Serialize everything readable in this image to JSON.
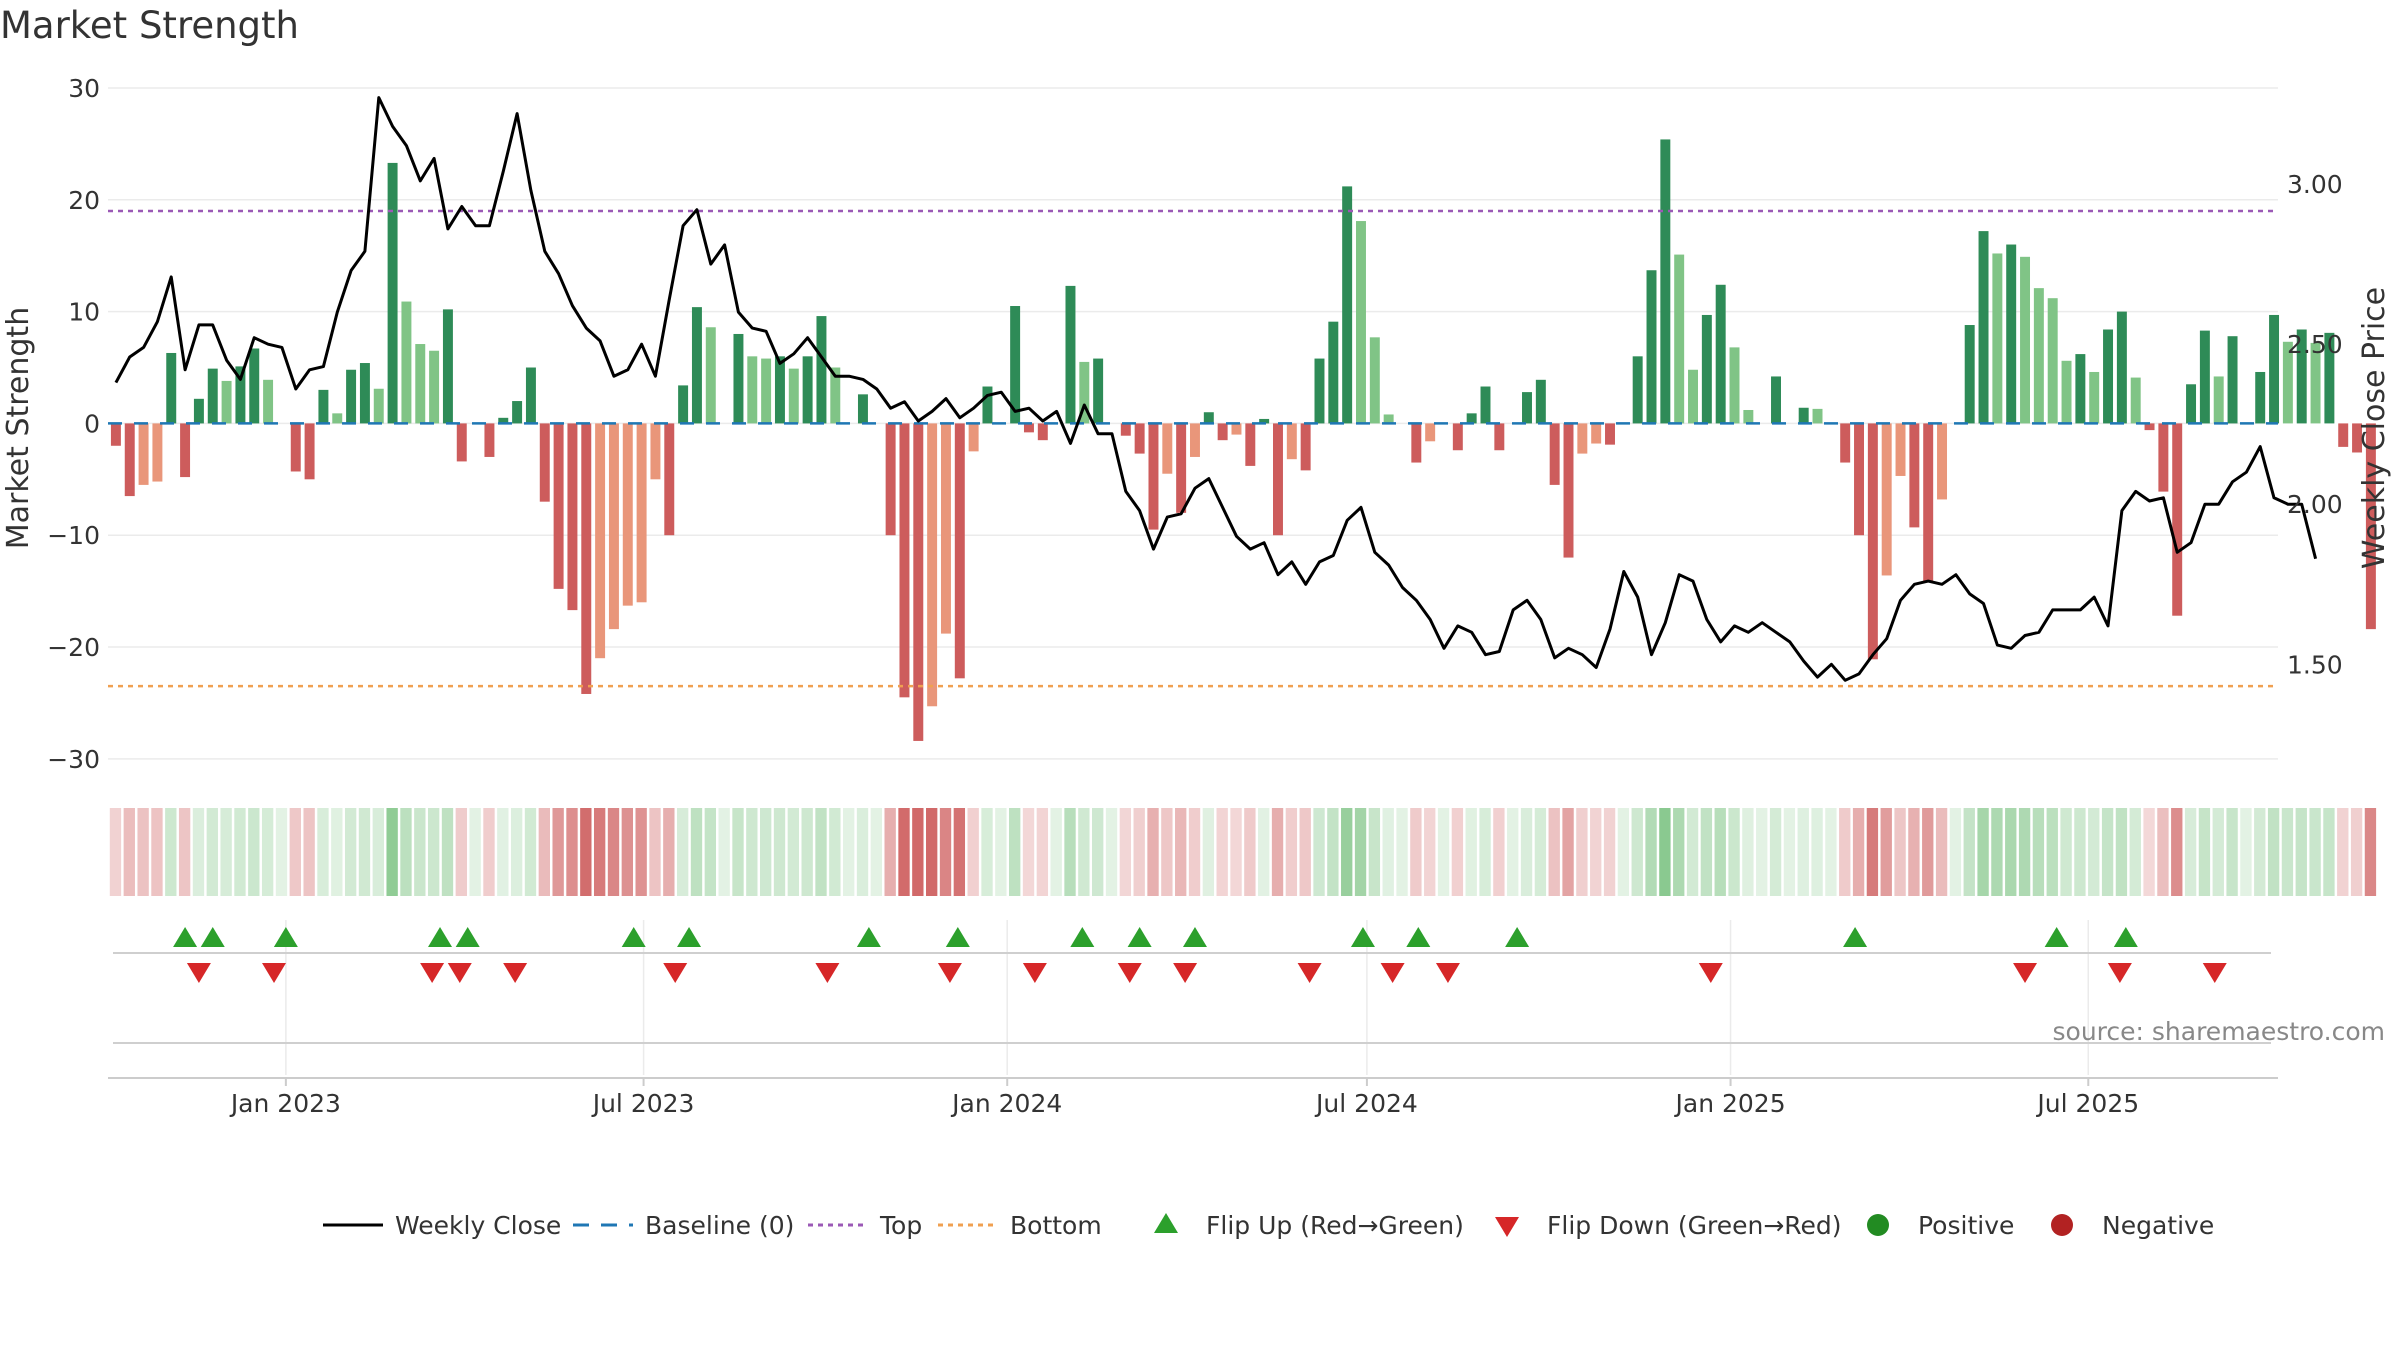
{
  "chart_data": {
    "type": "bar",
    "title": "Market Strength",
    "ylabel": "Market Strength",
    "y2label": "Weekly Close Price",
    "source": "source: sharemaestro.com",
    "ylim": [
      -31,
      30
    ],
    "y2lim": [
      1.17,
      3.3
    ],
    "yticks": [
      30,
      20,
      10,
      0,
      -10,
      -20,
      -30
    ],
    "ytick_labels": [
      "30",
      "20",
      "10",
      "0",
      "−10",
      "−20",
      "−30"
    ],
    "y2ticks": [
      3.0,
      2.5,
      2.0,
      1.5
    ],
    "y2tick_labels": [
      "3.00",
      "2.50",
      "2.00",
      "1.50"
    ],
    "x_start": "2022-10-03",
    "x_end": "2025-10-05",
    "xticks": [
      {
        "date": "2023-01-01",
        "label": "Jan 2023"
      },
      {
        "date": "2023-07-01",
        "label": "Jul 2023"
      },
      {
        "date": "2024-01-01",
        "label": "Jan 2024"
      },
      {
        "date": "2024-07-01",
        "label": "Jul 2024"
      },
      {
        "date": "2025-01-01",
        "label": "Jan 2025"
      },
      {
        "date": "2025-07-01",
        "label": "Jul 2025"
      }
    ],
    "week_start": "2022-10-07",
    "top_threshold": 19,
    "bottom_threshold": -23.5,
    "strength": [
      -2,
      -6.5,
      -5.5,
      -5.2,
      6.3,
      -4.8,
      2.2,
      4.9,
      3.8,
      5.1,
      6.7,
      3.9,
      0,
      -4.3,
      -5,
      3,
      0.9,
      4.8,
      5.4,
      3.1,
      23.3,
      10.9,
      7.1,
      6.5,
      10.2,
      -3.4,
      0,
      -3,
      0.5,
      2,
      5,
      -7,
      -14.8,
      -16.7,
      -24.2,
      -21,
      -18.4,
      -16.3,
      -16,
      -5,
      -10,
      3.4,
      10.4,
      8.6,
      0,
      8,
      6,
      5.8,
      6,
      4.9,
      6,
      9.6,
      5,
      0,
      2.6,
      0,
      -10,
      -24.5,
      -28.4,
      -25.3,
      -18.8,
      -22.8,
      -2.5,
      3.3,
      0,
      10.5,
      -0.8,
      -1.5,
      0,
      12.3,
      5.5,
      5.8,
      0,
      -1.1,
      -2.7,
      -9.5,
      -4.5,
      -8,
      -3,
      1,
      -1.5,
      -1,
      -3.8,
      0.4,
      -10,
      -3.2,
      -4.2,
      5.8,
      9.1,
      21.2,
      18.1,
      7.7,
      0.8,
      0,
      -3.5,
      -1.6,
      0,
      -2.4,
      0.9,
      3.3,
      -2.4,
      0,
      2.8,
      3.9,
      -5.5,
      -12,
      -2.7,
      -1.8,
      -1.9,
      0,
      6,
      13.7,
      25.4,
      15.1,
      4.8,
      9.7,
      12.4,
      6.8,
      1.2,
      0,
      4.2,
      0,
      1.4,
      1.3,
      0,
      -3.5,
      -10,
      -21.1,
      -13.6,
      -4.7,
      -9.3,
      -14.1,
      -6.8,
      0,
      8.8,
      17.2,
      15.2,
      16,
      14.9,
      12.1,
      11.2,
      5.6,
      6.2,
      4.6,
      8.4,
      10,
      4.1,
      -0.6,
      -6.1,
      -17.2,
      3.5,
      8.3,
      4.2,
      7.8,
      0,
      4.6,
      9.7,
      7.3,
      8.4,
      7.2,
      8.1,
      -2.1,
      -2.6,
      -18.4
    ],
    "close": [
      2.38,
      2.46,
      2.49,
      2.57,
      2.71,
      2.42,
      2.56,
      2.56,
      2.45,
      2.39,
      2.52,
      2.5,
      2.49,
      2.36,
      2.42,
      2.43,
      2.6,
      2.73,
      2.79,
      3.27,
      3.18,
      3.12,
      3.01,
      3.08,
      2.86,
      2.93,
      2.87,
      2.87,
      3.04,
      3.22,
      2.98,
      2.79,
      2.72,
      2.62,
      2.55,
      2.51,
      2.4,
      2.42,
      2.5,
      2.4,
      2.64,
      2.87,
      2.92,
      2.75,
      2.81,
      2.6,
      2.55,
      2.54,
      2.44,
      2.47,
      2.52,
      2.46,
      2.4,
      2.4,
      2.39,
      2.36,
      2.3,
      2.32,
      2.26,
      2.29,
      2.33,
      2.27,
      2.3,
      2.34,
      2.35,
      2.29,
      2.3,
      2.26,
      2.29,
      2.19,
      2.31,
      2.22,
      2.22,
      2.04,
      1.98,
      1.86,
      1.96,
      1.97,
      2.05,
      2.08,
      1.99,
      1.9,
      1.86,
      1.88,
      1.78,
      1.82,
      1.75,
      1.82,
      1.84,
      1.95,
      1.99,
      1.85,
      1.81,
      1.74,
      1.7,
      1.64,
      1.55,
      1.62,
      1.6,
      1.53,
      1.54,
      1.67,
      1.7,
      1.64,
      1.52,
      1.55,
      1.53,
      1.49,
      1.61,
      1.79,
      1.71,
      1.53,
      1.63,
      1.78,
      1.76,
      1.64,
      1.57,
      1.62,
      1.6,
      1.63,
      1.6,
      1.57,
      1.51,
      1.46,
      1.5,
      1.45,
      1.47,
      1.53,
      1.58,
      1.7,
      1.75,
      1.76,
      1.75,
      1.78,
      1.72,
      1.69,
      1.56,
      1.55,
      1.59,
      1.6,
      1.67,
      1.67,
      1.67,
      1.71,
      1.62,
      1.98,
      2.04,
      2.01,
      2.02,
      1.85,
      1.88,
      2.0,
      2.0,
      2.07,
      2.1,
      2.18,
      2.02,
      2.0,
      2.0,
      1.83
    ],
    "flip_up_dates": [
      "2022-11-11",
      "2022-11-25",
      "2023-01-01",
      "2023-03-20",
      "2023-04-03",
      "2023-06-26",
      "2023-07-24",
      "2023-10-23",
      "2023-12-07",
      "2024-02-08",
      "2024-03-08",
      "2024-04-05",
      "2024-06-29",
      "2024-07-27",
      "2024-09-15",
      "2025-03-05",
      "2025-06-15",
      "2025-07-20"
    ],
    "flip_down_dates": [
      "2022-11-18",
      "2022-12-26",
      "2023-03-16",
      "2023-03-30",
      "2023-04-27",
      "2023-07-17",
      "2023-10-02",
      "2023-12-03",
      "2024-01-15",
      "2024-03-03",
      "2024-03-31",
      "2024-06-02",
      "2024-07-14",
      "2024-08-11",
      "2024-12-22",
      "2025-05-30",
      "2025-07-17",
      "2025-09-03"
    ],
    "legend": [
      "Weekly Close",
      "Baseline (0)",
      "Top",
      "Bottom",
      "Flip Up (Red→Green)",
      "Flip Down (Green→Red)",
      "Positive",
      "Negative"
    ],
    "colors": {
      "pos_strong": "#2e8b57",
      "pos_light": "#80c486",
      "neg_strong": "#cd5c5c",
      "neg_light": "#e9967a",
      "line": "#000000",
      "baseline": "#1f77b4",
      "top": "#9b59b6",
      "bottom": "#f0a050",
      "flip_up": "#2ca02c",
      "flip_down": "#d62728",
      "positive": "#228b22",
      "negative": "#b22222",
      "grid": "#ebebeb"
    }
  }
}
